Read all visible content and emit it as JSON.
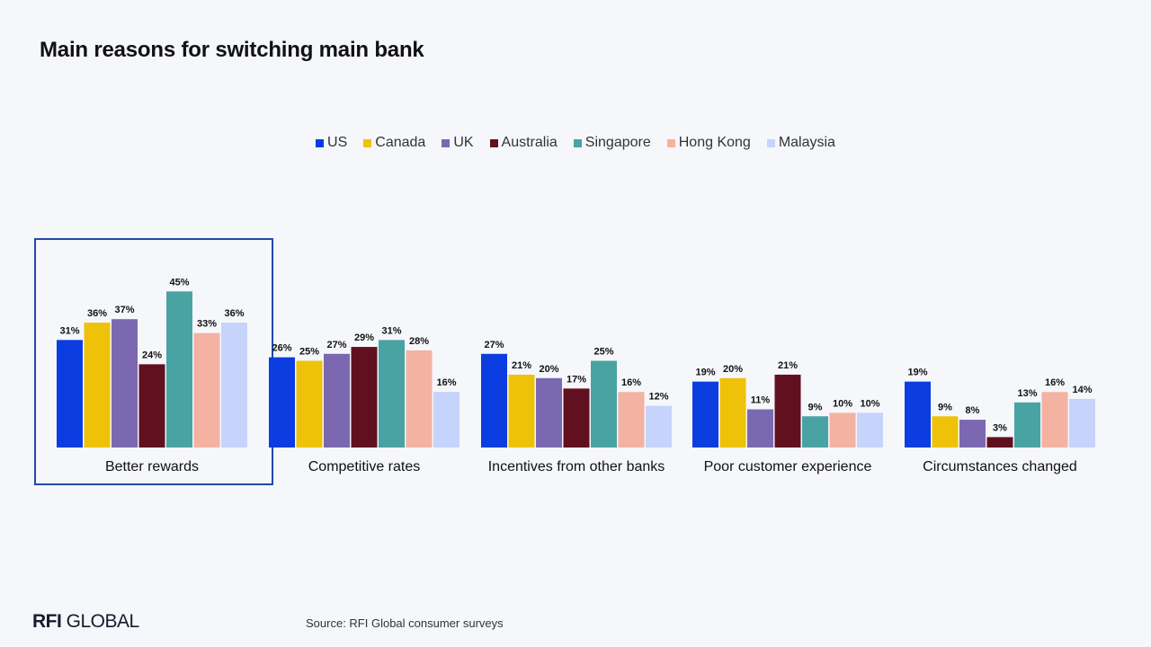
{
  "title": "Main reasons for switching main bank",
  "brand": {
    "bold": "RFI",
    "rest": " GLOBAL"
  },
  "source": "Source: RFI Global consumer surveys",
  "colors": {
    "US": "#0b3de0",
    "Canada": "#efc20a",
    "UK": "#7b68b0",
    "Australia": "#611020",
    "Singapore": "#4aa3a3",
    "Hong Kong": "#f4b2a2",
    "Malaysia": "#c6d3fb",
    "highlight_border": "#1f4aa8"
  },
  "chart_data": {
    "type": "bar",
    "categories": [
      "Better rewards",
      "Competitive rates",
      "Incentives from other banks",
      "Poor customer experience",
      "Circumstances changed"
    ],
    "series": [
      {
        "name": "US",
        "values": [
          31,
          26,
          27,
          19,
          19
        ]
      },
      {
        "name": "Canada",
        "values": [
          36,
          25,
          21,
          20,
          9
        ]
      },
      {
        "name": "UK",
        "values": [
          37,
          27,
          20,
          11,
          8
        ]
      },
      {
        "name": "Australia",
        "values": [
          24,
          29,
          17,
          21,
          3
        ]
      },
      {
        "name": "Singapore",
        "values": [
          45,
          31,
          25,
          9,
          13
        ]
      },
      {
        "name": "Hong Kong",
        "values": [
          33,
          28,
          16,
          10,
          16
        ]
      },
      {
        "name": "Malaysia",
        "values": [
          36,
          16,
          12,
          10,
          14
        ]
      }
    ],
    "value_suffix": "%",
    "legend_position": "top-center",
    "grid": false,
    "highlighted_category": "Better rewards"
  }
}
